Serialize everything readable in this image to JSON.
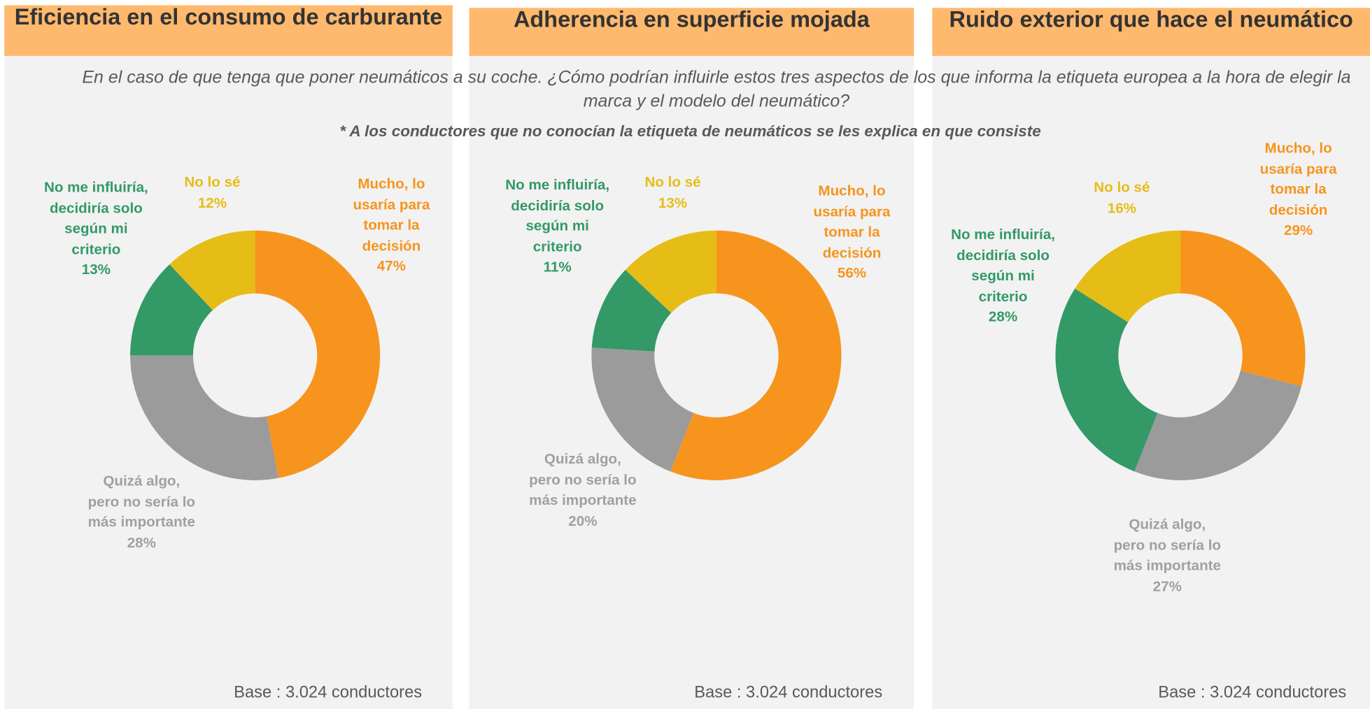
{
  "question": "En el caso de que tenga que poner neumáticos a su coche. ¿Cómo podrían influirle estos tres aspectos de los que informa la etiqueta europea a la hora de elegir la marca y el modelo del neumático?",
  "note": "* A los conductores que no conocían la etiqueta de neumáticos se les explica en que consiste",
  "chart_data": [
    {
      "type": "donut",
      "title": "Eficiencia en el consumo de carburante",
      "categories": [
        "Mucho, lo usaría para tomar la decisión",
        "Quizá algo, pero no sería lo más importante",
        "No me influiría, decidiría solo según mi criterio",
        "No lo sé"
      ],
      "values": [
        47,
        28,
        13,
        12
      ],
      "value_labels": [
        "47%",
        "28%",
        "13%",
        "12%"
      ],
      "colors": [
        "#f7941d",
        "#9b9b9b",
        "#339966",
        "#e6bc17"
      ],
      "footer": "Base : 3.024 conductores"
    },
    {
      "type": "donut",
      "title": "Adherencia en superficie mojada",
      "categories": [
        "Mucho, lo usaría para tomar la decisión",
        "Quizá algo, pero no sería lo más importante",
        "No me influiría, decidiría solo según mi criterio",
        "No lo sé"
      ],
      "values": [
        56,
        20,
        11,
        13
      ],
      "value_labels": [
        "56%",
        "20%",
        "11%",
        "13%"
      ],
      "colors": [
        "#f7941d",
        "#9b9b9b",
        "#339966",
        "#e6bc17"
      ],
      "footer": "Base : 3.024 conductores"
    },
    {
      "type": "donut",
      "title": "Ruido exterior que hace el neumático",
      "categories": [
        "Mucho, lo usaría para tomar la decisión",
        "Quizá algo, pero no sería lo más importante",
        "No me influiría, decidiría solo según mi criterio",
        "No lo sé"
      ],
      "values": [
        29,
        27,
        28,
        16
      ],
      "value_labels": [
        "29%",
        "27%",
        "28%",
        "16%"
      ],
      "colors": [
        "#f7941d",
        "#9b9b9b",
        "#339966",
        "#e6bc17"
      ],
      "footer": "Base : 3.024 conductores"
    }
  ]
}
